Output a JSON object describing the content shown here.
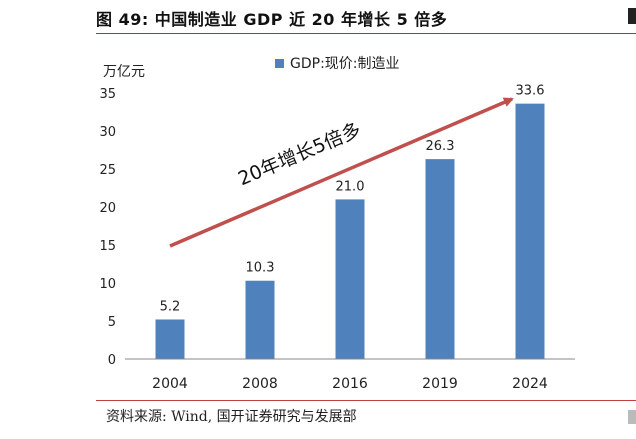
{
  "figure": {
    "title": "图 49:  中国制造业 GDP 近 20 年增长 5 倍多",
    "source": "资料来源:  Wind,  国开证券研究与发展部"
  },
  "chart_data": {
    "type": "bar",
    "title": "",
    "xlabel": "",
    "ylabel": "万亿元",
    "categories": [
      "2004",
      "2008",
      "2016",
      "2019",
      "2024"
    ],
    "series": [
      {
        "name": "GDP:现价:制造业",
        "values": [
          5.2,
          10.3,
          21.0,
          26.3,
          33.6
        ],
        "color": "#4f81bd"
      }
    ],
    "data_labels": [
      "5.2",
      "10.3",
      "21.0",
      "26.3",
      "33.6"
    ],
    "ylim": [
      0,
      35
    ],
    "yticks": [
      0,
      5,
      10,
      15,
      20,
      25,
      30,
      35
    ],
    "grid": false,
    "legend_position": "top-center",
    "annotation": {
      "text": "20年增长5倍多",
      "color": "#c0504d"
    }
  }
}
